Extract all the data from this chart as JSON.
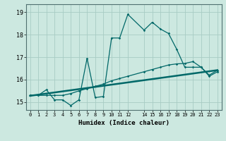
{
  "xlabel": "Humidex (Indice chaleur)",
  "bg_color": "#cce8e0",
  "grid_color": "#a8ccc4",
  "line_color": "#006868",
  "xlim": [
    -0.5,
    23.5
  ],
  "ylim": [
    14.65,
    19.35
  ],
  "x_ticks": [
    0,
    1,
    2,
    3,
    4,
    5,
    6,
    7,
    8,
    9,
    10,
    11,
    12,
    14,
    15,
    16,
    17,
    18,
    19,
    20,
    21,
    22,
    23
  ],
  "x_tick_labels": [
    "0",
    "1",
    "2",
    "3",
    "4",
    "5",
    "6",
    "7",
    "8",
    "9",
    "10",
    "11",
    "12",
    "14",
    "15",
    "16",
    "17",
    "18",
    "19",
    "20",
    "21",
    "22",
    "23"
  ],
  "y_ticks": [
    15,
    16,
    17,
    18,
    19
  ],
  "series1_x": [
    0,
    1,
    2,
    3,
    4,
    5,
    6,
    7,
    8,
    9,
    10,
    11,
    12,
    14,
    15,
    16,
    17,
    18,
    19,
    20,
    21,
    22,
    23
  ],
  "series1_y": [
    15.3,
    15.3,
    15.55,
    15.1,
    15.1,
    14.85,
    15.1,
    16.95,
    15.2,
    15.25,
    17.85,
    17.85,
    18.9,
    18.2,
    18.55,
    18.25,
    18.05,
    17.35,
    16.55,
    16.55,
    16.55,
    16.15,
    16.35
  ],
  "series2_x": [
    0,
    1,
    2,
    3,
    4,
    5,
    6,
    7,
    8,
    9,
    10,
    11,
    12,
    14,
    15,
    16,
    17,
    18,
    19,
    20,
    21,
    22,
    23
  ],
  "series2_y": [
    15.3,
    15.3,
    15.3,
    15.3,
    15.3,
    15.38,
    15.5,
    15.6,
    15.7,
    15.8,
    15.95,
    16.05,
    16.15,
    16.35,
    16.45,
    16.55,
    16.65,
    16.7,
    16.72,
    16.8,
    16.55,
    16.2,
    16.42
  ],
  "series3_x": [
    0,
    23
  ],
  "series3_y": [
    15.28,
    16.42
  ]
}
